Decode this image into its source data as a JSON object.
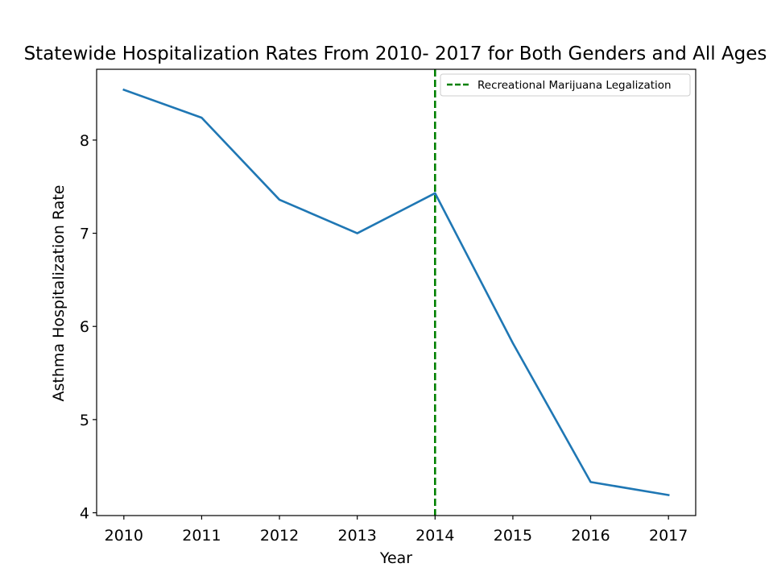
{
  "chart_data": {
    "type": "line",
    "title": "Statewide Hospitalization Rates From 2010- 2017 for Both Genders and All Ages",
    "xlabel": "Year",
    "ylabel": "Asthma Hospitalization Rate",
    "x": [
      2010,
      2011,
      2012,
      2013,
      2014,
      2015,
      2016,
      2017
    ],
    "x_tick_labels": [
      "2010",
      "2011",
      "2012",
      "2013",
      "2014",
      "2015",
      "2016",
      "2017"
    ],
    "y_ticks": [
      4,
      5,
      6,
      7,
      8
    ],
    "y_tick_labels": [
      "4",
      "5",
      "6",
      "7",
      "8"
    ],
    "xlim": [
      2009.65,
      2017.35
    ],
    "ylim": [
      3.97,
      8.76
    ],
    "grid": false,
    "series": [
      {
        "values": [
          8.54,
          8.24,
          7.36,
          7.0,
          7.43,
          5.82,
          4.33,
          4.19
        ],
        "color": "#1f77b4",
        "style": "solid"
      }
    ],
    "annotations": [
      {
        "type": "vertical-line",
        "x": 2014,
        "label": "Recreational Marijuana Legalization",
        "color": "#008000",
        "style": "dashed"
      }
    ],
    "legend": {
      "placement": "upper-right",
      "entries": [
        "Recreational Marijuana Legalization"
      ]
    }
  }
}
